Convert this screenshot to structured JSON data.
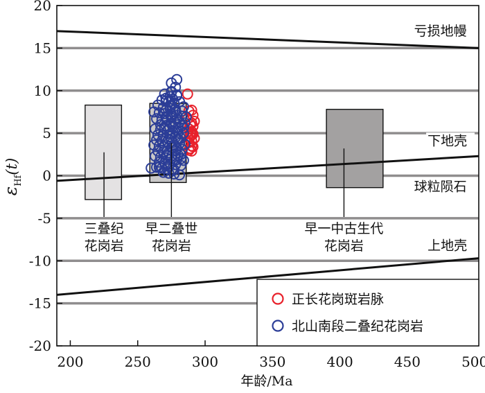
{
  "chart_data": {
    "type": "scatter",
    "xlabel": "年龄/Ma",
    "ylabel": "ε",
    "ylabel_sub": "Hf",
    "ylabel_tail": "(t)",
    "xlim": [
      190,
      503
    ],
    "ylim": [
      -20,
      20
    ],
    "xticks": [
      200,
      250,
      300,
      350,
      400,
      450,
      500
    ],
    "yticks": [
      -20,
      -15,
      -10,
      -5,
      0,
      5,
      10,
      15,
      20
    ],
    "gridlines_y": [
      -15,
      -10,
      -5,
      0,
      5,
      10,
      15
    ],
    "lines": [
      {
        "name": "亏损地幔",
        "x": [
          190,
          503
        ],
        "y": [
          17.0,
          15.0
        ]
      },
      {
        "name": "下地壳",
        "x": [
          190,
          503
        ],
        "y": [
          -0.6,
          2.3
        ]
      },
      {
        "name": "上地壳",
        "x": [
          190,
          503
        ],
        "y": [
          -14.0,
          -9.7
        ]
      }
    ],
    "line_labels": [
      {
        "text": "亏损地幔",
        "x": 455,
        "y": 16.5
      },
      {
        "text": "下地壳",
        "x": 465,
        "y": 3.6
      },
      {
        "text": "球粒陨石",
        "x": 455,
        "y": -1.8
      },
      {
        "text": "上地壳",
        "x": 465,
        "y": -8.7
      }
    ],
    "boxes": [
      {
        "name": "三叠纪花岗岩",
        "label_lines": [
          "三叠纪",
          "花岗岩"
        ],
        "x0": 211,
        "x1": 238,
        "y0": -2.8,
        "y1": 8.3,
        "fill": "#e4e2e3",
        "label_x": 225
      },
      {
        "name": "早二叠世花岗岩",
        "label_lines": [
          "早二叠世",
          "花岗岩"
        ],
        "x0": 259,
        "x1": 286,
        "y0": -0.8,
        "y1": 8.5,
        "fill": "#c9c8c8",
        "label_x": 275
      },
      {
        "name": "早一中古生代花岗岩",
        "label_lines": [
          "早一中古生代",
          "花岗岩"
        ],
        "x0": 390,
        "x1": 432,
        "y0": -1.4,
        "y1": 7.8,
        "fill": "#a3a1a1",
        "label_x": 403
      }
    ],
    "series": [
      {
        "name": "正长花岗斑岩脉",
        "color": "#e8202a",
        "x": [
          287,
          288,
          290,
          291,
          287,
          290,
          289,
          291,
          288,
          290,
          291,
          289,
          288,
          290,
          292,
          288,
          290,
          289,
          291,
          290,
          288,
          289,
          292,
          290
        ],
        "y": [
          9.6,
          7.6,
          7.7,
          7.1,
          6.7,
          6.2,
          6.0,
          5.8,
          5.5,
          5.2,
          4.9,
          4.6,
          4.4,
          4.1,
          4.4,
          3.9,
          3.5,
          3.2,
          3.4,
          2.9,
          3.0,
          5.0,
          6.4,
          4.8
        ]
      },
      {
        "name": "北山南段二叠纪花岗岩",
        "color": "#2b3d97",
        "x": [
          279,
          275,
          278,
          275,
          270,
          279,
          274,
          276,
          268,
          271,
          281,
          273,
          277,
          275,
          284,
          265,
          269,
          274,
          278,
          283,
          262,
          266,
          270,
          275,
          279,
          283,
          286,
          264,
          268,
          272,
          277,
          281,
          285,
          267,
          271,
          276,
          280,
          284,
          263,
          267,
          272,
          276,
          280,
          284,
          265,
          269,
          274,
          278,
          282,
          264,
          268,
          272,
          276,
          281,
          285,
          262,
          266,
          270,
          275,
          279,
          283,
          265,
          269,
          273,
          278,
          282,
          263,
          267,
          271,
          275,
          279,
          284,
          266,
          270,
          274,
          278,
          282,
          264,
          268,
          272,
          277,
          269,
          273,
          277,
          281,
          271,
          275,
          279,
          273,
          277,
          271,
          275,
          279,
          274,
          278,
          273,
          276,
          280,
          270,
          274,
          278,
          282,
          260,
          266,
          272,
          276,
          280,
          275,
          279,
          271,
          283
        ],
        "y": [
          11.3,
          10.9,
          10.4,
          9.9,
          9.6,
          9.5,
          9.3,
          9.0,
          8.9,
          9.1,
          8.7,
          8.7,
          8.5,
          8.3,
          8.1,
          8.3,
          8.0,
          7.9,
          7.8,
          7.6,
          7.5,
          7.4,
          7.3,
          7.2,
          7.1,
          7.0,
          6.9,
          6.7,
          6.6,
          6.5,
          6.4,
          6.3,
          6.2,
          6.0,
          5.9,
          5.8,
          5.7,
          5.6,
          5.5,
          5.4,
          5.3,
          5.2,
          5.1,
          5.0,
          4.8,
          4.7,
          4.6,
          4.5,
          4.4,
          4.2,
          4.1,
          4.0,
          3.9,
          3.8,
          3.7,
          3.6,
          3.5,
          3.4,
          3.3,
          3.2,
          3.1,
          2.9,
          2.8,
          2.7,
          2.6,
          2.5,
          2.3,
          2.2,
          2.1,
          2.0,
          1.9,
          1.8,
          1.6,
          1.5,
          1.4,
          1.3,
          1.2,
          1.0,
          0.9,
          0.8,
          0.7,
          0.4,
          0.3,
          0.2,
          0.1,
          6.8,
          6.1,
          5.3,
          4.3,
          3.6,
          7.7,
          7.0,
          6.6,
          8.2,
          7.5,
          1.1,
          0.6,
          2.4,
          5.6,
          4.9,
          3.0,
          2.0,
          0.9,
          1.0,
          2.4,
          3.3,
          4.3,
          9.8,
          9.4,
          8.8,
          5.9
        ]
      }
    ],
    "legend": {
      "position": "bottom-right",
      "entries": [
        {
          "label": "正长花岗斑岩脉",
          "color": "#e8202a"
        },
        {
          "label": "北山南段二叠纪花岗岩",
          "color": "#2b3d97"
        }
      ]
    }
  }
}
